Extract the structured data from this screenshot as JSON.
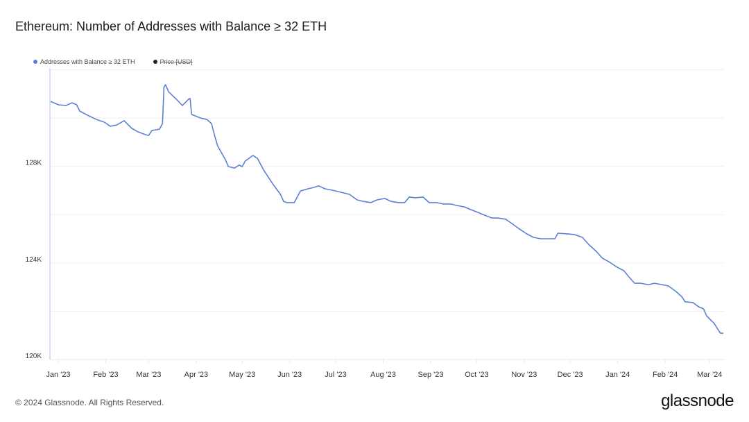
{
  "title": "Ethereum: Number of Addresses with Balance ≥ 32 ETH",
  "legend": [
    {
      "label": "Addresses with Balance ≥ 32 ETH",
      "color": "#5b7fd6",
      "active": true
    },
    {
      "label": "Price [USD]",
      "color": "#222222",
      "active": false
    }
  ],
  "footer": "© 2024 Glassnode. All Rights Reserved.",
  "logo": "glassnode",
  "chart_data": {
    "type": "line",
    "title": "Ethereum: Number of Addresses with Balance ≥ 32 ETH",
    "xlabel": "",
    "ylabel": "",
    "ylim": [
      120000,
      132000
    ],
    "y_ticks": [
      {
        "value": 120000,
        "label": "120K"
      },
      {
        "value": 124000,
        "label": "124K"
      },
      {
        "value": 128000,
        "label": "128K"
      }
    ],
    "y_gridlines": [
      120000,
      122000,
      124000,
      126000,
      128000,
      130000,
      132000
    ],
    "x_ticks": [
      {
        "date": "2023-01-01",
        "label": "Jan '23"
      },
      {
        "date": "2023-02-01",
        "label": "Feb '23"
      },
      {
        "date": "2023-03-01",
        "label": "Mar '23"
      },
      {
        "date": "2023-04-01",
        "label": "Apr '23"
      },
      {
        "date": "2023-05-01",
        "label": "May '23"
      },
      {
        "date": "2023-06-01",
        "label": "Jun '23"
      },
      {
        "date": "2023-07-01",
        "label": "Jul '23"
      },
      {
        "date": "2023-08-01",
        "label": "Aug '23"
      },
      {
        "date": "2023-09-01",
        "label": "Sep '23"
      },
      {
        "date": "2023-10-01",
        "label": "Oct '23"
      },
      {
        "date": "2023-11-01",
        "label": "Nov '23"
      },
      {
        "date": "2023-12-01",
        "label": "Dec '23"
      },
      {
        "date": "2024-01-01",
        "label": "Jan '24"
      },
      {
        "date": "2024-02-01",
        "label": "Feb '24"
      },
      {
        "date": "2024-03-01",
        "label": "Mar '24"
      }
    ],
    "grid": true,
    "legend_position": "top-left",
    "series": [
      {
        "name": "Addresses with Balance ≥ 32 ETH",
        "color": "#5b7fd6",
        "points": [
          [
            "2022-12-27",
            130690
          ],
          [
            "2023-01-01",
            130550
          ],
          [
            "2023-01-06",
            130520
          ],
          [
            "2023-01-10",
            130630
          ],
          [
            "2023-01-13",
            130550
          ],
          [
            "2023-01-15",
            130290
          ],
          [
            "2023-01-20",
            130120
          ],
          [
            "2023-01-26",
            129940
          ],
          [
            "2023-01-31",
            129830
          ],
          [
            "2023-02-04",
            129660
          ],
          [
            "2023-02-08",
            129710
          ],
          [
            "2023-02-13",
            129890
          ],
          [
            "2023-02-18",
            129570
          ],
          [
            "2023-02-22",
            129430
          ],
          [
            "2023-02-27",
            129310
          ],
          [
            "2023-03-01",
            129280
          ],
          [
            "2023-03-03",
            129480
          ],
          [
            "2023-03-08",
            129540
          ],
          [
            "2023-03-10",
            129770
          ],
          [
            "2023-03-11",
            131290
          ],
          [
            "2023-03-12",
            131380
          ],
          [
            "2023-03-14",
            131090
          ],
          [
            "2023-03-19",
            130780
          ],
          [
            "2023-03-23",
            130520
          ],
          [
            "2023-03-27",
            130780
          ],
          [
            "2023-03-28",
            130810
          ],
          [
            "2023-03-29",
            130150
          ],
          [
            "2023-04-04",
            130000
          ],
          [
            "2023-04-08",
            129940
          ],
          [
            "2023-04-11",
            129770
          ],
          [
            "2023-04-13",
            129280
          ],
          [
            "2023-04-15",
            128850
          ],
          [
            "2023-04-20",
            128280
          ],
          [
            "2023-04-22",
            127990
          ],
          [
            "2023-04-26",
            127930
          ],
          [
            "2023-04-29",
            128050
          ],
          [
            "2023-05-01",
            127990
          ],
          [
            "2023-05-03",
            128220
          ],
          [
            "2023-05-08",
            128450
          ],
          [
            "2023-05-11",
            128330
          ],
          [
            "2023-05-15",
            127850
          ],
          [
            "2023-05-21",
            127270
          ],
          [
            "2023-05-26",
            126840
          ],
          [
            "2023-05-28",
            126550
          ],
          [
            "2023-05-30",
            126500
          ],
          [
            "2023-06-04",
            126500
          ],
          [
            "2023-06-08",
            126980
          ],
          [
            "2023-06-13",
            127070
          ],
          [
            "2023-06-17",
            127130
          ],
          [
            "2023-06-20",
            127190
          ],
          [
            "2023-06-24",
            127070
          ],
          [
            "2023-06-29",
            127010
          ],
          [
            "2023-07-06",
            126900
          ],
          [
            "2023-07-10",
            126840
          ],
          [
            "2023-07-15",
            126610
          ],
          [
            "2023-07-19",
            126550
          ],
          [
            "2023-07-24",
            126500
          ],
          [
            "2023-07-28",
            126610
          ],
          [
            "2023-08-02",
            126670
          ],
          [
            "2023-08-06",
            126550
          ],
          [
            "2023-08-11",
            126500
          ],
          [
            "2023-08-15",
            126500
          ],
          [
            "2023-08-18",
            126730
          ],
          [
            "2023-08-22",
            126700
          ],
          [
            "2023-08-27",
            126730
          ],
          [
            "2023-08-31",
            126500
          ],
          [
            "2023-09-05",
            126500
          ],
          [
            "2023-09-09",
            126440
          ],
          [
            "2023-09-14",
            126440
          ],
          [
            "2023-09-18",
            126380
          ],
          [
            "2023-09-23",
            126320
          ],
          [
            "2023-09-27",
            126210
          ],
          [
            "2023-10-02",
            126090
          ],
          [
            "2023-10-06",
            125980
          ],
          [
            "2023-10-11",
            125860
          ],
          [
            "2023-10-15",
            125860
          ],
          [
            "2023-10-20",
            125810
          ],
          [
            "2023-10-24",
            125630
          ],
          [
            "2023-10-29",
            125400
          ],
          [
            "2023-11-02",
            125230
          ],
          [
            "2023-11-07",
            125060
          ],
          [
            "2023-11-12",
            125000
          ],
          [
            "2023-11-16",
            125000
          ],
          [
            "2023-11-21",
            125000
          ],
          [
            "2023-11-23",
            125230
          ],
          [
            "2023-11-30",
            125200
          ],
          [
            "2023-12-04",
            125170
          ],
          [
            "2023-12-09",
            125060
          ],
          [
            "2023-12-13",
            124770
          ],
          [
            "2023-12-18",
            124480
          ],
          [
            "2023-12-22",
            124200
          ],
          [
            "2023-12-27",
            124020
          ],
          [
            "2023-12-31",
            123850
          ],
          [
            "2024-01-05",
            123680
          ],
          [
            "2024-01-08",
            123450
          ],
          [
            "2024-01-12",
            123160
          ],
          [
            "2024-01-16",
            123160
          ],
          [
            "2024-01-21",
            123100
          ],
          [
            "2024-01-25",
            123160
          ],
          [
            "2024-01-30",
            123100
          ],
          [
            "2024-02-03",
            123050
          ],
          [
            "2024-02-08",
            122820
          ],
          [
            "2024-02-12",
            122590
          ],
          [
            "2024-02-14",
            122390
          ],
          [
            "2024-02-19",
            122360
          ],
          [
            "2024-02-23",
            122180
          ],
          [
            "2024-02-26",
            122100
          ],
          [
            "2024-02-28",
            121810
          ],
          [
            "2024-03-04",
            121490
          ],
          [
            "2024-03-08",
            121090
          ],
          [
            "2024-03-10",
            121090
          ]
        ]
      }
    ]
  }
}
